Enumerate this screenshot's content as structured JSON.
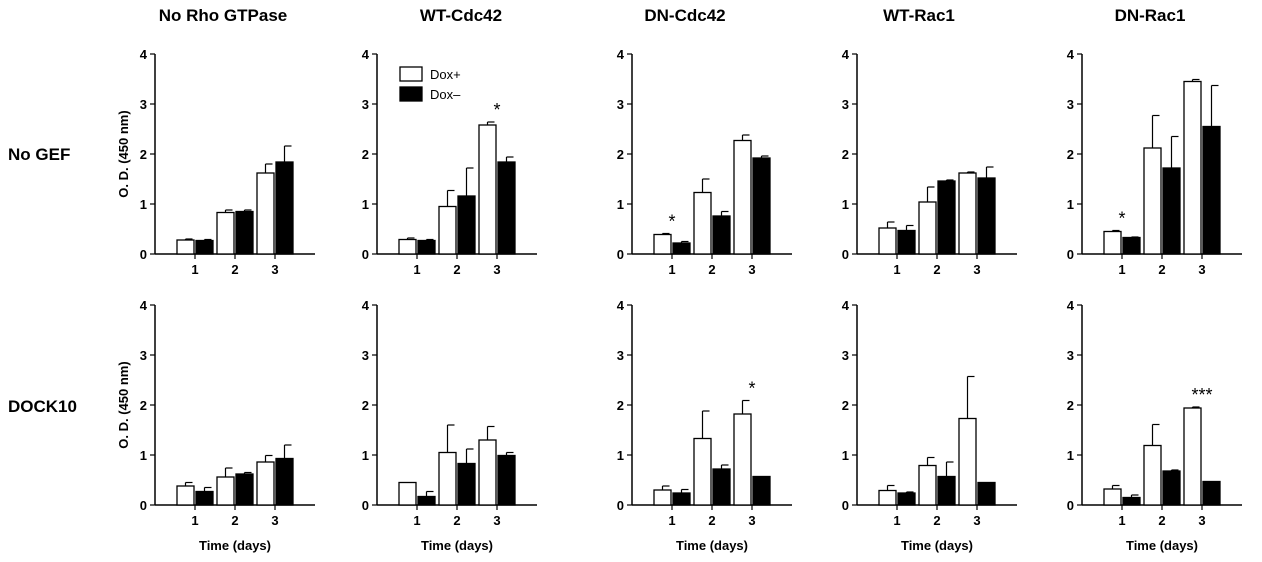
{
  "column_titles": [
    "No Rho GTPase",
    "WT-Cdc42",
    "DN-Cdc42",
    "WT-Rac1",
    "DN-Rac1"
  ],
  "row_titles": [
    "No GEF",
    "DOCK10"
  ],
  "ylabel": "O. D. (450 nm)",
  "xlabel": "Time (days)",
  "legend": [
    {
      "label": "Dox+",
      "color": "#ffffff"
    },
    {
      "label": "Dox–",
      "color": "#000000"
    }
  ],
  "colors": {
    "dox_plus": "#ffffff",
    "dox_minus": "#000000",
    "stroke": "#000000"
  },
  "chart_data": [
    {
      "type": "bar",
      "title": "No Rho GTPase",
      "row": "No GEF",
      "categories": [
        "1",
        "2",
        "3"
      ],
      "ylim": [
        0,
        4
      ],
      "yticks": [
        0,
        1,
        2,
        3,
        4
      ],
      "series": [
        {
          "name": "Dox+",
          "values": [
            0.28,
            0.83,
            1.62
          ],
          "errors": [
            0.02,
            0.05,
            0.18
          ]
        },
        {
          "name": "Dox–",
          "values": [
            0.27,
            0.85,
            1.84
          ],
          "errors": [
            0.02,
            0.03,
            0.32
          ]
        }
      ],
      "annotations": []
    },
    {
      "type": "bar",
      "title": "WT-Cdc42",
      "row": "No GEF",
      "categories": [
        "1",
        "2",
        "3"
      ],
      "ylim": [
        0,
        4
      ],
      "yticks": [
        0,
        1,
        2,
        3,
        4
      ],
      "series": [
        {
          "name": "Dox+",
          "values": [
            0.29,
            0.95,
            2.58
          ],
          "errors": [
            0.03,
            0.32,
            0.06
          ]
        },
        {
          "name": "Dox–",
          "values": [
            0.27,
            1.16,
            1.84
          ],
          "errors": [
            0.02,
            0.56,
            0.1
          ]
        }
      ],
      "annotations": [
        {
          "category": "3",
          "text": "*"
        }
      ]
    },
    {
      "type": "bar",
      "title": "DN-Cdc42",
      "row": "No GEF",
      "categories": [
        "1",
        "2",
        "3"
      ],
      "ylim": [
        0,
        4
      ],
      "yticks": [
        0,
        1,
        2,
        3,
        4
      ],
      "series": [
        {
          "name": "Dox+",
          "values": [
            0.39,
            1.23,
            2.27
          ],
          "errors": [
            0.02,
            0.27,
            0.11
          ]
        },
        {
          "name": "Dox–",
          "values": [
            0.22,
            0.76,
            1.92
          ],
          "errors": [
            0.03,
            0.09,
            0.04
          ]
        }
      ],
      "annotations": [
        {
          "category": "1",
          "text": "*"
        }
      ]
    },
    {
      "type": "bar",
      "title": "WT-Rac1",
      "row": "No GEF",
      "categories": [
        "1",
        "2",
        "3"
      ],
      "ylim": [
        0,
        4
      ],
      "yticks": [
        0,
        1,
        2,
        3,
        4
      ],
      "series": [
        {
          "name": "Dox+",
          "values": [
            0.52,
            1.04,
            1.62
          ],
          "errors": [
            0.12,
            0.3,
            0.02
          ]
        },
        {
          "name": "Dox–",
          "values": [
            0.47,
            1.46,
            1.52
          ],
          "errors": [
            0.1,
            0.02,
            0.22
          ]
        }
      ],
      "annotations": []
    },
    {
      "type": "bar",
      "title": "DN-Rac1",
      "row": "No GEF",
      "categories": [
        "1",
        "2",
        "3"
      ],
      "ylim": [
        0,
        4
      ],
      "yticks": [
        0,
        1,
        2,
        3,
        4
      ],
      "series": [
        {
          "name": "Dox+",
          "values": [
            0.45,
            2.12,
            3.45
          ],
          "errors": [
            0.02,
            0.65,
            0.04
          ]
        },
        {
          "name": "Dox–",
          "values": [
            0.33,
            1.72,
            2.55
          ],
          "errors": [
            0.01,
            0.63,
            0.82
          ]
        }
      ],
      "annotations": [
        {
          "category": "1",
          "text": "*"
        }
      ]
    },
    {
      "type": "bar",
      "title": "No Rho GTPase",
      "row": "DOCK10",
      "categories": [
        "1",
        "2",
        "3"
      ],
      "ylim": [
        0,
        4
      ],
      "yticks": [
        0,
        1,
        2,
        3,
        4
      ],
      "series": [
        {
          "name": "Dox+",
          "values": [
            0.38,
            0.56,
            0.86
          ],
          "errors": [
            0.07,
            0.18,
            0.13
          ]
        },
        {
          "name": "Dox–",
          "values": [
            0.27,
            0.62,
            0.93
          ],
          "errors": [
            0.08,
            0.03,
            0.27
          ]
        }
      ],
      "annotations": []
    },
    {
      "type": "bar",
      "title": "WT-Cdc42",
      "row": "DOCK10",
      "categories": [
        "1",
        "2",
        "3"
      ],
      "ylim": [
        0,
        4
      ],
      "yticks": [
        0,
        1,
        2,
        3,
        4
      ],
      "series": [
        {
          "name": "Dox+",
          "values": [
            0.45,
            1.05,
            1.3
          ],
          "errors": [
            0.0,
            0.55,
            0.27
          ]
        },
        {
          "name": "Dox–",
          "values": [
            0.17,
            0.83,
            0.99
          ],
          "errors": [
            0.1,
            0.29,
            0.06
          ]
        }
      ],
      "annotations": []
    },
    {
      "type": "bar",
      "title": "DN-Cdc42",
      "row": "DOCK10",
      "categories": [
        "1",
        "2",
        "3"
      ],
      "ylim": [
        0,
        4
      ],
      "yticks": [
        0,
        1,
        2,
        3,
        4
      ],
      "series": [
        {
          "name": "Dox+",
          "values": [
            0.3,
            1.33,
            1.82
          ],
          "errors": [
            0.08,
            0.55,
            0.27
          ]
        },
        {
          "name": "Dox–",
          "values": [
            0.24,
            0.72,
            0.57
          ],
          "errors": [
            0.07,
            0.08,
            0.0
          ]
        }
      ],
      "annotations": [
        {
          "category": "3",
          "text": "*"
        }
      ]
    },
    {
      "type": "bar",
      "title": "WT-Rac1",
      "row": "DOCK10",
      "categories": [
        "1",
        "2",
        "3"
      ],
      "ylim": [
        0,
        4
      ],
      "yticks": [
        0,
        1,
        2,
        3,
        4
      ],
      "series": [
        {
          "name": "Dox+",
          "values": [
            0.29,
            0.79,
            1.73
          ],
          "errors": [
            0.1,
            0.16,
            0.84
          ]
        },
        {
          "name": "Dox–",
          "values": [
            0.24,
            0.57,
            0.45
          ],
          "errors": [
            0.02,
            0.29,
            0.0
          ]
        }
      ],
      "annotations": []
    },
    {
      "type": "bar",
      "title": "DN-Rac1",
      "row": "DOCK10",
      "categories": [
        "1",
        "2",
        "3"
      ],
      "ylim": [
        0,
        4
      ],
      "yticks": [
        0,
        1,
        2,
        3,
        4
      ],
      "series": [
        {
          "name": "Dox+",
          "values": [
            0.32,
            1.19,
            1.94
          ],
          "errors": [
            0.07,
            0.42,
            0.02
          ]
        },
        {
          "name": "Dox–",
          "values": [
            0.15,
            0.68,
            0.47
          ],
          "errors": [
            0.05,
            0.02,
            0.0
          ]
        }
      ],
      "annotations": [
        {
          "category": "3",
          "text": "***"
        }
      ]
    }
  ]
}
